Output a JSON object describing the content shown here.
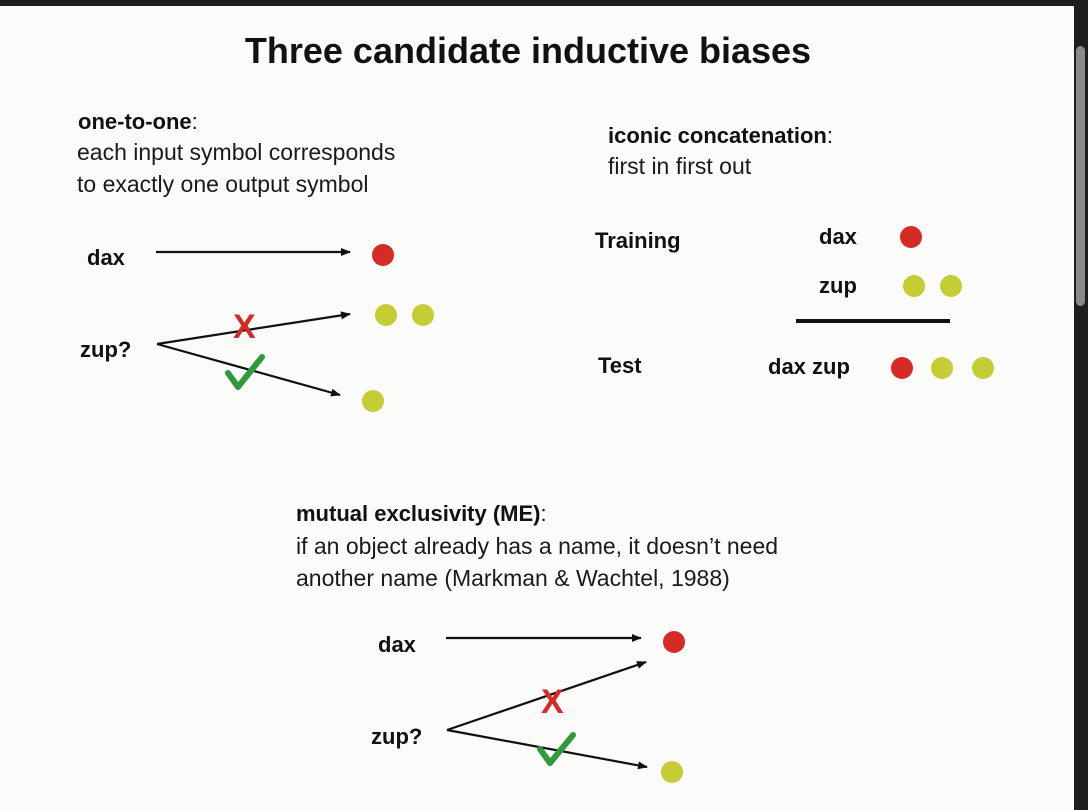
{
  "title": "Three candidate inductive biases",
  "one_to_one": {
    "heading": "one-to-one",
    "colon": ":",
    "desc_line1": "each input symbol corresponds",
    "desc_line2": "to exactly one output symbol",
    "word_dax": "dax",
    "word_zup": "zup?",
    "cross_mark": "X"
  },
  "iconic": {
    "heading": "iconic concatenation",
    "colon": ":",
    "desc": "first in first out",
    "training_label": "Training",
    "test_label": "Test",
    "word_dax": "dax",
    "word_zup": "zup",
    "word_dax_zup": "dax zup"
  },
  "me": {
    "heading": "mutual exclusivity (ME)",
    "colon": ":",
    "desc_line1": "if an object already has a name, it doesn’t need",
    "desc_line2": "another name (Markman & Wachtel, 1988)",
    "word_dax": "dax",
    "word_zup": "zup?",
    "cross_mark": "X"
  },
  "colors": {
    "red_dot": "#d52a26",
    "yellow_dot": "#c4cd33",
    "cross": "#d52a26",
    "check": "#2f9a3c"
  }
}
